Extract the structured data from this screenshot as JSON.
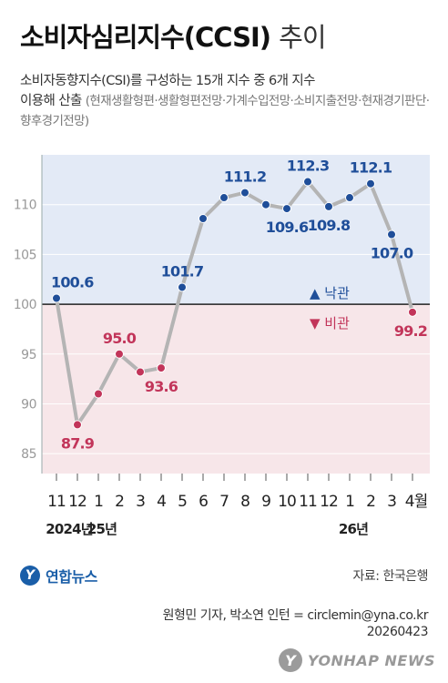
{
  "header": {
    "title_main": "소비자심리지수(CCSI)",
    "title_suffix": "추이",
    "subtitle_line1": "소비자동향지수(CSI)를 구성하는 15개 지수 중 6개 지수",
    "subtitle_line2": "이용해 산출",
    "subtitle_detail": "(현재생활형편·생활형편전망·가계수입전망·소비지출전망·현재경기판단·향후경기전망)"
  },
  "chart_data": {
    "type": "line",
    "categories": [
      "11",
      "12",
      "1",
      "2",
      "3",
      "4",
      "5",
      "6",
      "7",
      "8",
      "9",
      "10",
      "11",
      "12",
      "1",
      "2",
      "3",
      "4월"
    ],
    "values": [
      100.6,
      87.9,
      91.0,
      95.0,
      93.2,
      93.6,
      101.7,
      108.6,
      110.7,
      111.2,
      110.0,
      109.6,
      112.3,
      109.8,
      110.7,
      112.1,
      107.0,
      99.2
    ],
    "labels": [
      "100.6",
      "87.9",
      "",
      "95.0",
      "",
      "93.6",
      "101.7",
      "",
      "",
      "111.2",
      "",
      "109.6",
      "112.3",
      "109.8",
      "",
      "112.1",
      "107.0",
      "99.2"
    ],
    "label_side": [
      "up",
      "down",
      "",
      "up",
      "",
      "down",
      "up",
      "",
      "",
      "up",
      "",
      "down",
      "up",
      "down",
      "",
      "up",
      "down",
      "down"
    ],
    "year_labels": [
      {
        "at": 0,
        "text": "2024년"
      },
      {
        "at": 2,
        "text": "25년"
      },
      {
        "at": 14,
        "text": "26년"
      }
    ],
    "yticks": [
      85,
      90,
      95,
      100,
      105,
      110
    ],
    "ylim": [
      83,
      115
    ],
    "baseline": 100,
    "legend": {
      "optimism": "▲ 낙관",
      "pessimism": "▼ 비관"
    },
    "colors": {
      "optimism_bg": "#e3eaf6",
      "pessimism_bg": "#f7e6e9",
      "optimism": "#1f4e99",
      "pessimism": "#c2355a",
      "line": "#b4b4b4"
    }
  },
  "footer": {
    "brand": "연합뉴스",
    "source": "자료: 한국은행",
    "credit": "원형민 기자, 박소연 인턴 = circlemin@yna.co.kr",
    "date": "20260423",
    "watermark": "YONHAP NEWS"
  }
}
